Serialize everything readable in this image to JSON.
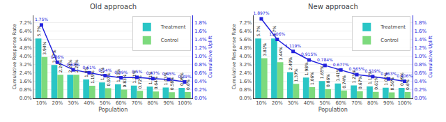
{
  "chart_data": [
    {
      "type": "bar",
      "title": "Old approach",
      "categories": [
        "10%",
        "20%",
        "30%",
        "40%",
        "50%",
        "60%",
        "70%",
        "80%",
        "90%",
        "100%"
      ],
      "xlabel": "Population",
      "ylabel": "Cumulative Response Rate",
      "y2label": "Cumulative Uplift",
      "series": [
        {
          "name": "Treatment",
          "type": "bar",
          "color": "#29c5c5",
          "values": [
            5.7,
            3.17,
            2.24,
            1.8,
            1.51,
            1.33,
            1.21,
            1.11,
            1.03,
            0.99
          ],
          "value_labels": [
            "5.7%",
            "3.17%",
            "2.24%",
            "1.8%",
            "1.51%",
            "1.33%",
            "1.21%",
            "1.11%",
            "1.03%",
            "0.99%"
          ]
        },
        {
          "name": "Control",
          "type": "bar",
          "color": "#7dda7d",
          "values": [
            3.94,
            2.24,
            2.24,
            1.19,
            0.97,
            0.83,
            0.72,
            0.64,
            0.58,
            0.6
          ],
          "value_labels": [
            "3.94%",
            "2.24%",
            "2.24%",
            "1.19%",
            "0.97%",
            "0.83%",
            "0.72%",
            "0.64%",
            "0.58%",
            "0.6%"
          ]
        },
        {
          "type": "line",
          "axis": "y2",
          "color": "#2222dd",
          "marker": "square",
          "values": [
            1.75,
            0.86,
            0.68,
            0.61,
            0.54,
            0.49,
            0.5,
            0.47,
            0.45,
            0.39
          ],
          "value_labels": [
            "1.75%",
            "0.86%",
            "0.68%",
            "0.61%",
            "0.54%",
            "0.49%",
            "0.5%",
            "0.47%",
            "0.45%",
            "0.39%"
          ]
        }
      ],
      "ylim": [
        0.0,
        7.9
      ],
      "yticks": [
        {
          "value": 0.0,
          "label": "0.0%"
        },
        {
          "value": 0.8,
          "label": "0.8%"
        },
        {
          "value": 1.6,
          "label": "1.6%"
        },
        {
          "value": 2.4,
          "label": "2.4%"
        },
        {
          "value": 3.2,
          "label": "3.2%"
        },
        {
          "value": 4.0,
          "label": "4.0%"
        },
        {
          "value": 4.8,
          "label": "4.8%"
        },
        {
          "value": 5.6,
          "label": "5.6%"
        },
        {
          "value": 6.4,
          "label": "6.4%"
        },
        {
          "value": 7.2,
          "label": "7.2%"
        }
      ],
      "y2lim": [
        0.0,
        1.98
      ],
      "y2ticks": [
        {
          "value": 0.0,
          "label": "0.0%"
        },
        {
          "value": 0.2,
          "label": "0.2%"
        },
        {
          "value": 0.4,
          "label": "0.4%"
        },
        {
          "value": 0.6,
          "label": "0.6%"
        },
        {
          "value": 0.8,
          "label": "0.8%"
        },
        {
          "value": 1.0,
          "label": "1.0%"
        },
        {
          "value": 1.2,
          "label": "1.2%"
        },
        {
          "value": 1.4,
          "label": "1.4%"
        },
        {
          "value": 1.6,
          "label": "1.6%"
        },
        {
          "value": 1.8,
          "label": "1.8%"
        }
      ],
      "grid": true,
      "legend": "upper right",
      "data_labels": true
    },
    {
      "type": "bar",
      "title": "New approach",
      "categories": [
        "10%",
        "20%",
        "30%",
        "40%",
        "50%",
        "60%",
        "70%",
        "80%",
        "90%",
        "100%"
      ],
      "xlabel": "Population",
      "ylabel": "Cumulative Response Rate",
      "y2label": "Cumulative Uplift",
      "series": [
        {
          "name": "Treatment",
          "type": "bar",
          "color": "#29c5c5",
          "values": [
            5.7,
            5.7,
            2.49,
            1.98,
            1.65,
            1.41,
            1.23,
            1.13,
            1.02,
            0.99
          ],
          "value_labels": [
            "5.7%",
            "5.7%",
            "2.49%",
            "1.98%",
            "1.65%",
            "1.41%",
            "1.23%",
            "1.13%",
            "1.02%",
            "0.99%"
          ]
        },
        {
          "name": "Control",
          "type": "bar",
          "color": "#7dda7d",
          "values": [
            3.81,
            3.44,
            1.37,
            1.06,
            0.86,
            0.74,
            0.67,
            0.61,
            0.56,
            0.6
          ],
          "value_labels": [
            "3.81%",
            "3.44%",
            "1.37%",
            "1.06%",
            "0.86%",
            "0.74%",
            "0.67%",
            "0.61%",
            "0.56%",
            "0.6%"
          ]
        },
        {
          "type": "line",
          "axis": "y2",
          "color": "#2222dd",
          "marker": "square",
          "values": [
            1.897,
            1.406,
            1.119,
            0.915,
            0.784,
            0.677,
            0.565,
            0.519,
            0.463,
            0.406
          ],
          "value_labels": [
            "1.897%",
            "1.406%",
            "1.119%",
            "0.915%",
            "0.784%",
            "0.677%",
            "0.565%",
            "0.519%",
            "0.463%",
            "0.406%"
          ]
        }
      ],
      "ylim": [
        0.0,
        7.9
      ],
      "yticks": [
        {
          "value": 0.0,
          "label": "0.0%"
        },
        {
          "value": 0.8,
          "label": "0.8%"
        },
        {
          "value": 1.6,
          "label": "1.6%"
        },
        {
          "value": 2.4,
          "label": "2.4%"
        },
        {
          "value": 3.2,
          "label": "3.2%"
        },
        {
          "value": 4.0,
          "label": "4.0%"
        },
        {
          "value": 4.8,
          "label": "4.8%"
        },
        {
          "value": 5.6,
          "label": "5.6%"
        },
        {
          "value": 6.4,
          "label": "6.4%"
        },
        {
          "value": 7.2,
          "label": "7.2%"
        }
      ],
      "y2lim": [
        0.0,
        1.98
      ],
      "y2ticks": [
        {
          "value": 0.0,
          "label": "0.0%"
        },
        {
          "value": 0.2,
          "label": "0.2%"
        },
        {
          "value": 0.4,
          "label": "0.4%"
        },
        {
          "value": 0.6,
          "label": "0.6%"
        },
        {
          "value": 0.8,
          "label": "0.8%"
        },
        {
          "value": 1.0,
          "label": "1.0%"
        },
        {
          "value": 1.2,
          "label": "1.2%"
        },
        {
          "value": 1.4,
          "label": "1.4%"
        },
        {
          "value": 1.6,
          "label": "1.6%"
        },
        {
          "value": 1.8,
          "label": "1.8%"
        }
      ],
      "grid": true,
      "legend": "upper right",
      "data_labels": true
    }
  ]
}
